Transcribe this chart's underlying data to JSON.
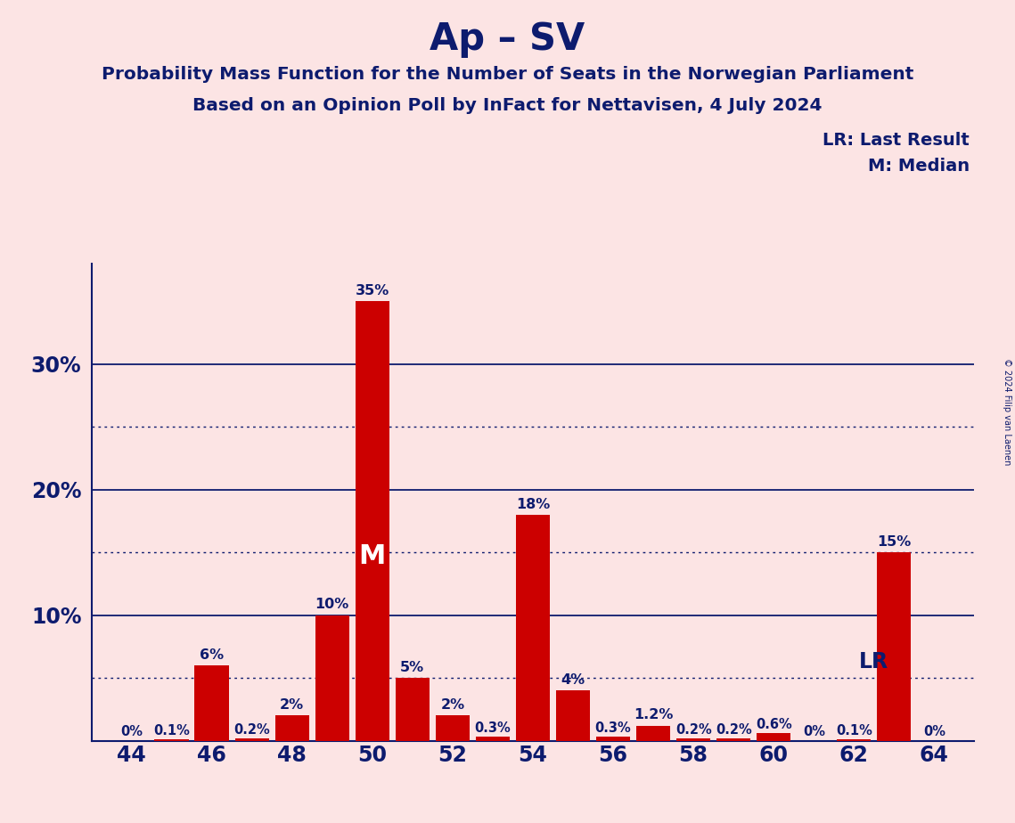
{
  "title": "Ap – SV",
  "subtitle1": "Probability Mass Function for the Number of Seats in the Norwegian Parliament",
  "subtitle2": "Based on an Opinion Poll by InFact for Nettavisen, 4 July 2024",
  "copyright": "© 2024 Filip van Laenen",
  "seats": [
    44,
    45,
    46,
    47,
    48,
    49,
    50,
    51,
    52,
    53,
    54,
    55,
    56,
    57,
    58,
    59,
    60,
    61,
    62,
    63,
    64
  ],
  "probabilities": [
    0.0,
    0.1,
    6.0,
    0.2,
    2.0,
    10.0,
    35.0,
    5.0,
    2.0,
    0.3,
    18.0,
    4.0,
    0.3,
    1.2,
    0.2,
    0.2,
    0.6,
    0.0,
    0.1,
    15.0,
    0.0
  ],
  "bar_color": "#cc0000",
  "background_color": "#fce4e4",
  "text_color": "#0d1b6e",
  "axis_color": "#0d1b6e",
  "median_seat": 50,
  "lr_value": 5.0,
  "lr_label": "LR",
  "median_label": "M",
  "legend_lr": "LR: Last Result",
  "legend_m": "M: Median",
  "solid_lines": [
    10.0,
    20.0,
    30.0
  ],
  "dotted_lines": [
    5.0,
    15.0,
    25.0
  ],
  "xlim": [
    43.0,
    65.0
  ],
  "ylim": [
    0,
    38
  ],
  "xtick_positions": [
    44,
    46,
    48,
    50,
    52,
    54,
    56,
    58,
    60,
    62,
    64
  ],
  "ytick_positions": [
    10,
    20,
    30
  ],
  "ytick_labels": [
    "10%",
    "20%",
    "30%"
  ]
}
